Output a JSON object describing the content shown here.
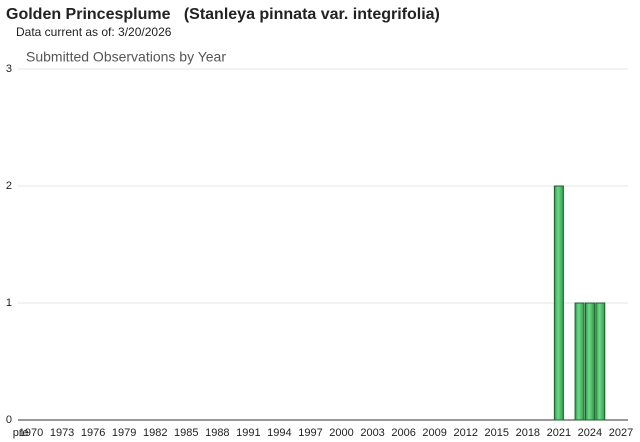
{
  "header": {
    "title": "Golden Princesplume   (Stanleya pinnata var. integrifolia)",
    "subtitle": "Data current as of: 3/20/2026"
  },
  "chart_data": {
    "type": "bar",
    "title": "Submitted Observations by Year",
    "categories": [
      "pre",
      "1970",
      null,
      null,
      "1973",
      null,
      null,
      "1976",
      null,
      null,
      "1979",
      null,
      null,
      "1982",
      null,
      null,
      "1985",
      null,
      null,
      "1988",
      null,
      null,
      "1991",
      null,
      null,
      "1994",
      null,
      null,
      "1997",
      null,
      null,
      "2000",
      null,
      null,
      "2003",
      null,
      null,
      "2006",
      null,
      null,
      "2009",
      null,
      null,
      "2012",
      null,
      null,
      "2015",
      null,
      null,
      "2018",
      null,
      null,
      "2021",
      null,
      null,
      "2024",
      null,
      null,
      "2027"
    ],
    "values": [
      0,
      0,
      0,
      0,
      0,
      0,
      0,
      0,
      0,
      0,
      0,
      0,
      0,
      0,
      0,
      0,
      0,
      0,
      0,
      0,
      0,
      0,
      0,
      0,
      0,
      0,
      0,
      0,
      0,
      0,
      0,
      0,
      0,
      0,
      0,
      0,
      0,
      0,
      0,
      0,
      0,
      0,
      0,
      0,
      0,
      0,
      0,
      0,
      0,
      0,
      0,
      0,
      2,
      0,
      1,
      1,
      1,
      0,
      0
    ],
    "color": "#3cb55a",
    "ylim": [
      0,
      3
    ],
    "yticks": [
      0,
      1,
      2,
      3
    ],
    "grid": true
  }
}
